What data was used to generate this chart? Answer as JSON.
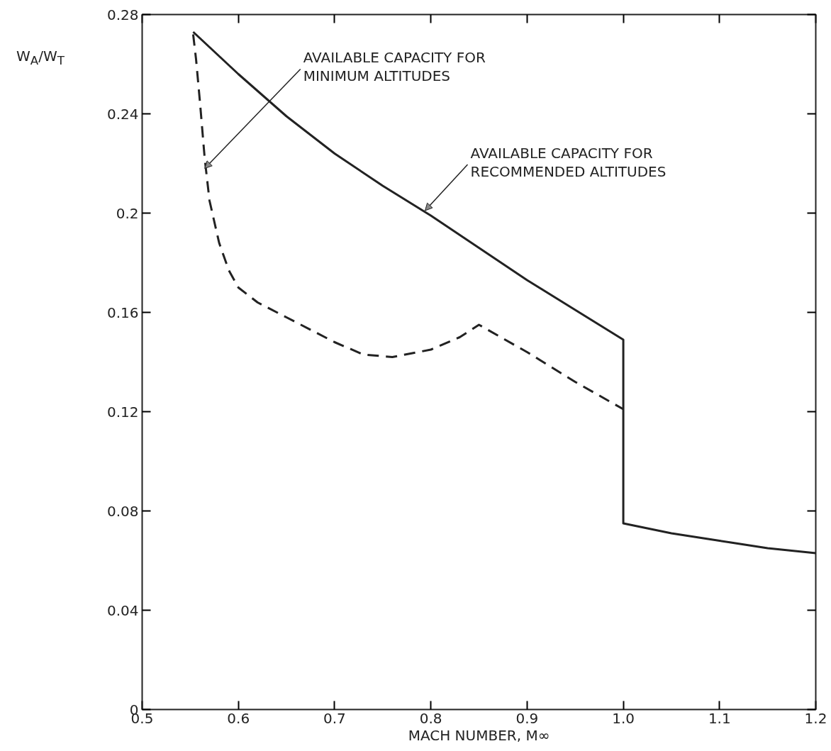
{
  "chart_data": {
    "type": "line",
    "xlabel": "MACH NUMBER, M∞",
    "ylabel": "W$_{A}$/W$_{T}$",
    "xlim": [
      0.5,
      1.2
    ],
    "ylim": [
      0,
      0.28
    ],
    "xticks": [
      0.5,
      0.6,
      0.7,
      0.8,
      0.9,
      {
        "value": 1.0,
        "label": "1.0"
      },
      1.1,
      1.2
    ],
    "yticks": [
      0,
      0.04,
      0.08,
      0.12,
      0.16,
      0.2,
      0.24,
      0.28
    ],
    "grid": false,
    "marker": "none",
    "series": [
      {
        "color": "#222222",
        "line_style": "solid",
        "x": [
          0.553,
          0.6,
          0.65,
          0.7,
          0.75,
          0.8,
          0.85,
          0.9,
          0.95,
          1.0,
          1.0,
          1.05,
          1.1,
          1.15,
          1.2
        ],
        "values": [
          0.273,
          0.256,
          0.239,
          0.224,
          0.211,
          0.199,
          0.186,
          0.173,
          0.161,
          0.149,
          0.075,
          0.071,
          0.068,
          0.065,
          0.063
        ]
      },
      {
        "color": "#222222",
        "line_style": "dashed",
        "x": [
          0.553,
          0.556,
          0.56,
          0.565,
          0.57,
          0.58,
          0.59,
          0.6,
          0.62,
          0.65,
          0.7,
          0.73,
          0.76,
          0.8,
          0.83,
          0.85,
          0.9,
          0.95,
          1.0
        ],
        "values": [
          0.272,
          0.262,
          0.245,
          0.222,
          0.205,
          0.188,
          0.177,
          0.17,
          0.164,
          0.158,
          0.148,
          0.143,
          0.142,
          0.145,
          0.15,
          0.155,
          0.144,
          0.132,
          0.121
        ]
      }
    ],
    "annotations": [
      {
        "text": "AVAILABLE CAPACITY FOR\nMINIMUM ALTITUDES",
        "x": 0.565,
        "y": 0.218
      },
      {
        "text": "AVAILABLE CAPACITY FOR\nRECOMMENDED ALTITUDES",
        "x": 0.794,
        "y": 0.201
      }
    ]
  }
}
